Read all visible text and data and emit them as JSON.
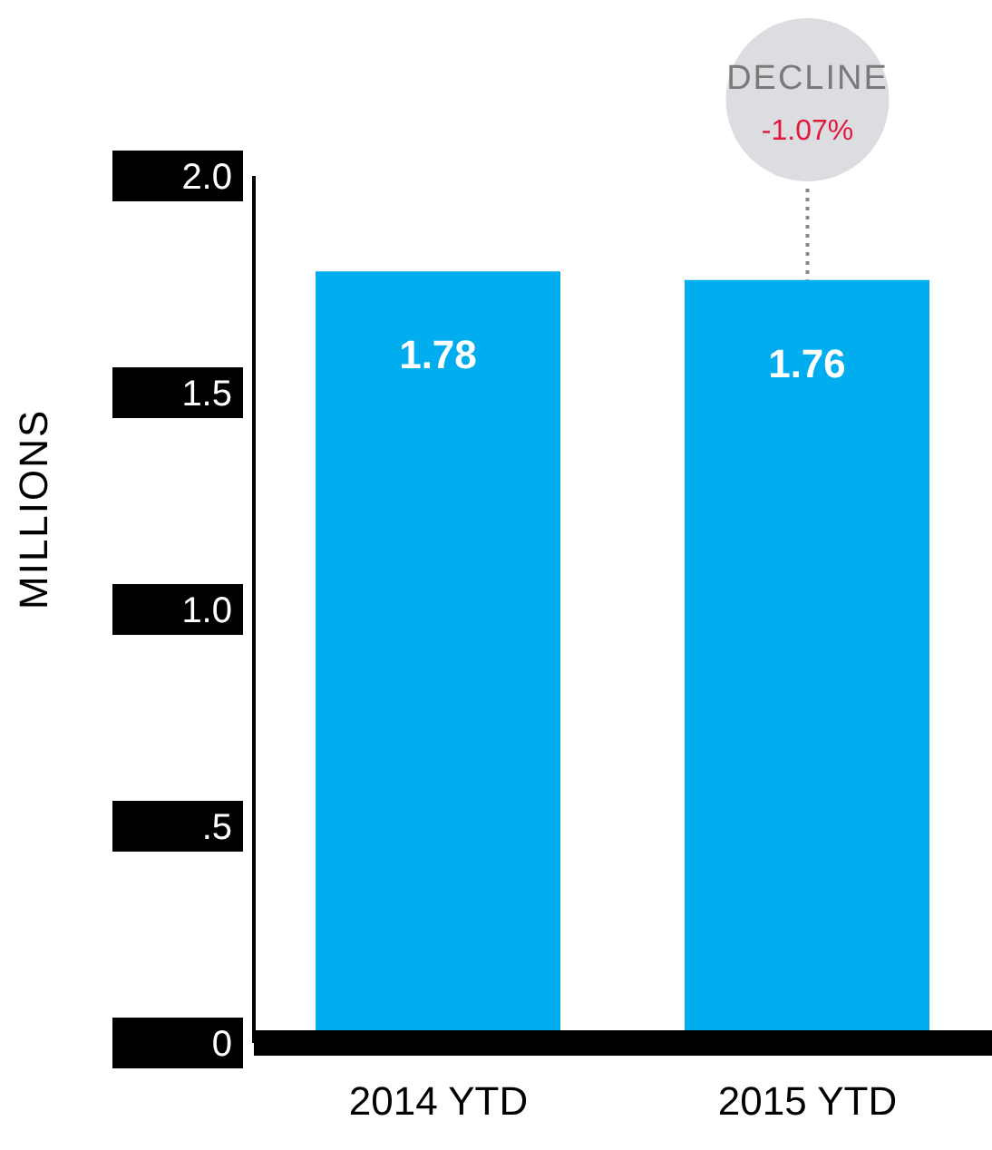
{
  "chart_data": {
    "type": "bar",
    "ylabel": "MILLIONS",
    "categories": [
      "2014 YTD",
      "2015 YTD"
    ],
    "values": [
      1.78,
      1.76
    ],
    "color": "#00aeef",
    "data_labels": true,
    "ylim": [
      0,
      2
    ],
    "yticks": [
      0,
      {
        "value": 0.5,
        "label": ".5"
      },
      {
        "value": 1,
        "label": "1.0"
      },
      1.5,
      {
        "value": 2,
        "label": "2.0"
      }
    ],
    "grid": false,
    "annotations": [
      "DECLINE",
      "-1.07%"
    ]
  }
}
